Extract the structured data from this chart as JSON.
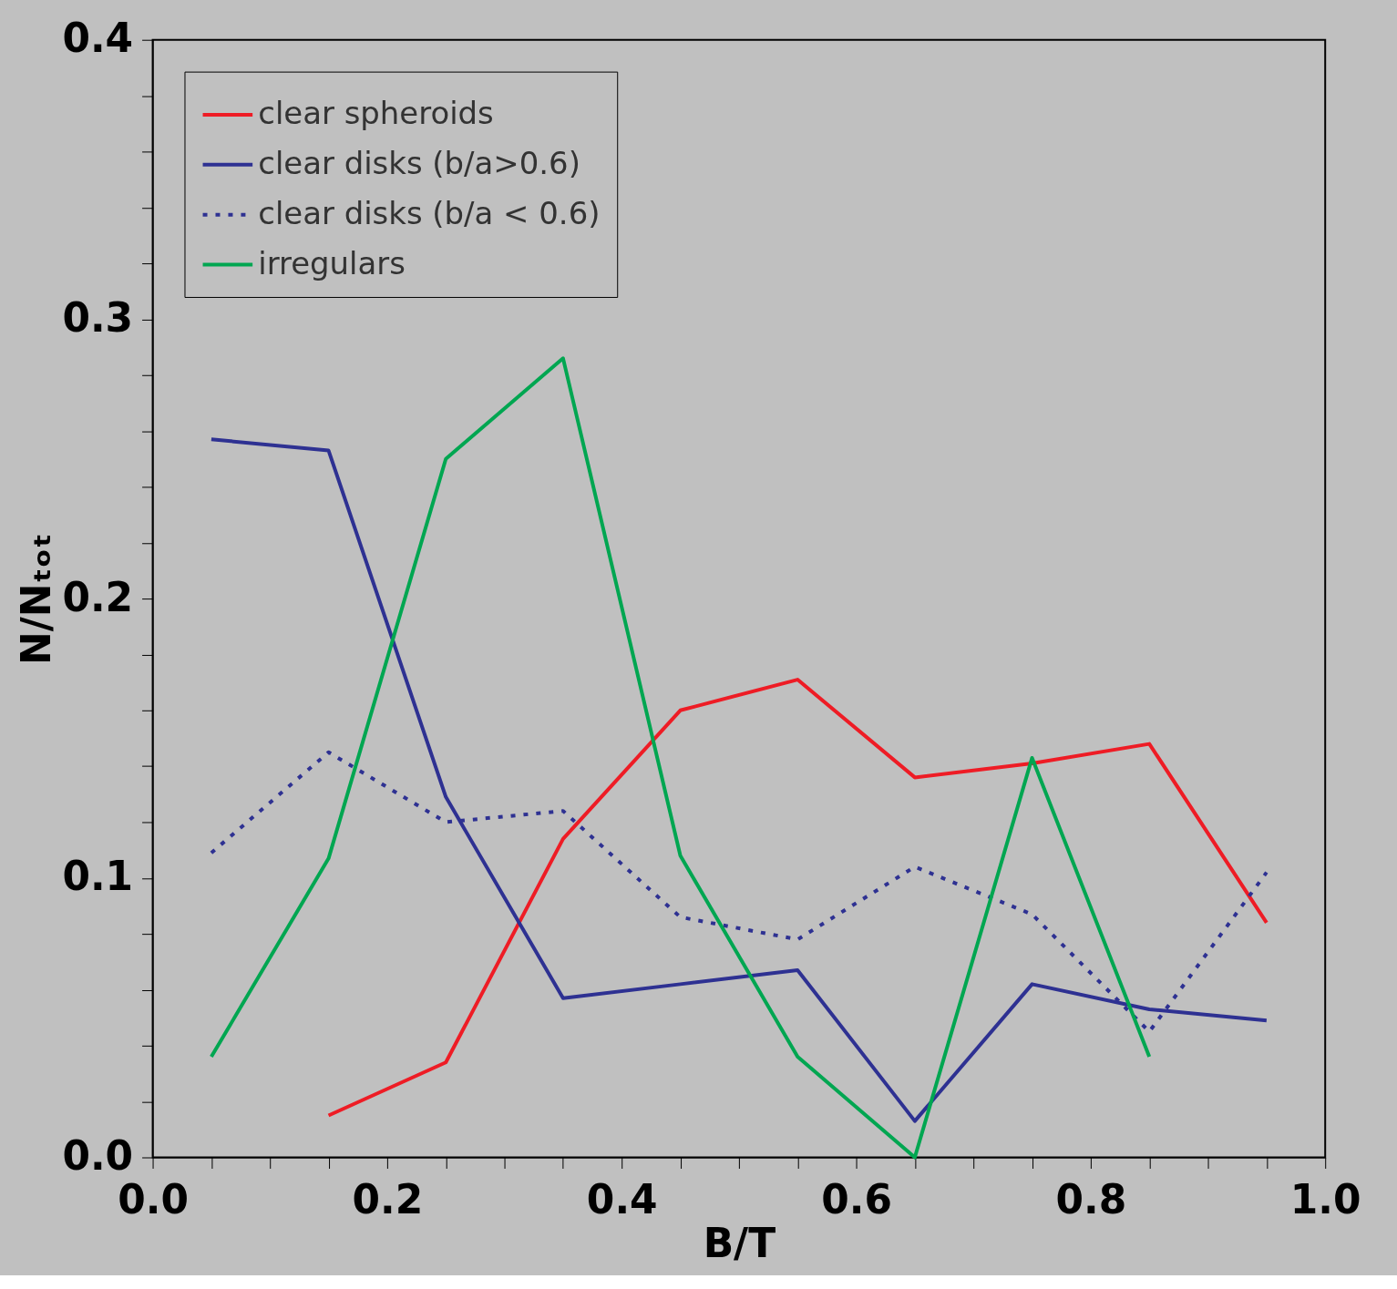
{
  "chart_data": {
    "type": "line",
    "xlabel": "B/T",
    "ylabel": "N/Nₜₒₜ",
    "grid": false,
    "legend": "top left",
    "marker": "none",
    "x": [
      0.05,
      0.15,
      0.25,
      0.35,
      0.45,
      0.55,
      0.65,
      0.75,
      0.85,
      0.95
    ],
    "xlim": [
      0,
      1
    ],
    "ylim": [
      0,
      0.4
    ],
    "xticks": [
      {
        "value": 0,
        "label": "0.0"
      },
      {
        "value": 0.05,
        "label": null
      },
      {
        "value": 0.1,
        "label": null
      },
      {
        "value": 0.15,
        "label": null
      },
      {
        "value": 0.2,
        "label": "0.2"
      },
      {
        "value": 0.25,
        "label": null
      },
      {
        "value": 0.3,
        "label": null
      },
      {
        "value": 0.35,
        "label": null
      },
      {
        "value": 0.4,
        "label": "0.4"
      },
      {
        "value": 0.45,
        "label": null
      },
      {
        "value": 0.5,
        "label": null
      },
      {
        "value": 0.55,
        "label": null
      },
      {
        "value": 0.6,
        "label": "0.6"
      },
      {
        "value": 0.65,
        "label": null
      },
      {
        "value": 0.7,
        "label": null
      },
      {
        "value": 0.75,
        "label": null
      },
      {
        "value": 0.8,
        "label": "0.8"
      },
      {
        "value": 0.85,
        "label": null
      },
      {
        "value": 0.9,
        "label": null
      },
      {
        "value": 0.95,
        "label": null
      },
      {
        "value": 1,
        "label": "1.0"
      }
    ],
    "yticks": [
      {
        "value": 0,
        "label": "0.0"
      },
      {
        "value": 0.02,
        "label": null
      },
      {
        "value": 0.04,
        "label": null
      },
      {
        "value": 0.06,
        "label": null
      },
      {
        "value": 0.08,
        "label": null
      },
      {
        "value": 0.1,
        "label": "0.1"
      },
      {
        "value": 0.12,
        "label": null
      },
      {
        "value": 0.14,
        "label": null
      },
      {
        "value": 0.16,
        "label": null
      },
      {
        "value": 0.18,
        "label": null
      },
      {
        "value": 0.2,
        "label": "0.2"
      },
      {
        "value": 0.22,
        "label": null
      },
      {
        "value": 0.24,
        "label": null
      },
      {
        "value": 0.26,
        "label": null
      },
      {
        "value": 0.28,
        "label": null
      },
      {
        "value": 0.3,
        "label": "0.3"
      },
      {
        "value": 0.32,
        "label": null
      },
      {
        "value": 0.34,
        "label": null
      },
      {
        "value": 0.36,
        "label": null
      },
      {
        "value": 0.38,
        "label": null
      },
      {
        "value": 0.4,
        "label": "0.4"
      }
    ],
    "series": [
      {
        "name": "clear spheroids",
        "color": "#ee1c25",
        "line_style": "solid",
        "values": [
          null,
          0.015,
          0.034,
          0.114,
          0.16,
          0.171,
          0.136,
          0.141,
          0.148,
          0.084
        ]
      },
      {
        "name": "clear disks (b/a>0.6)",
        "color": "#2e3192",
        "line_style": "solid",
        "values": [
          0.257,
          0.253,
          0.129,
          0.057,
          0.062,
          0.067,
          0.013,
          0.062,
          0.053,
          0.049
        ]
      },
      {
        "name": "clear disks (b/a < 0.6)",
        "color": "#2e3192",
        "line_style": "dotted",
        "values": [
          0.109,
          0.145,
          0.12,
          0.124,
          0.086,
          0.078,
          0.104,
          0.087,
          0.045,
          0.102
        ]
      },
      {
        "name": "irregulars",
        "color": "#00a651",
        "line_style": "solid",
        "values": [
          0.036,
          0.107,
          0.25,
          0.286,
          0.108,
          0.036,
          0.0,
          0.143,
          0.036,
          null
        ]
      }
    ]
  }
}
